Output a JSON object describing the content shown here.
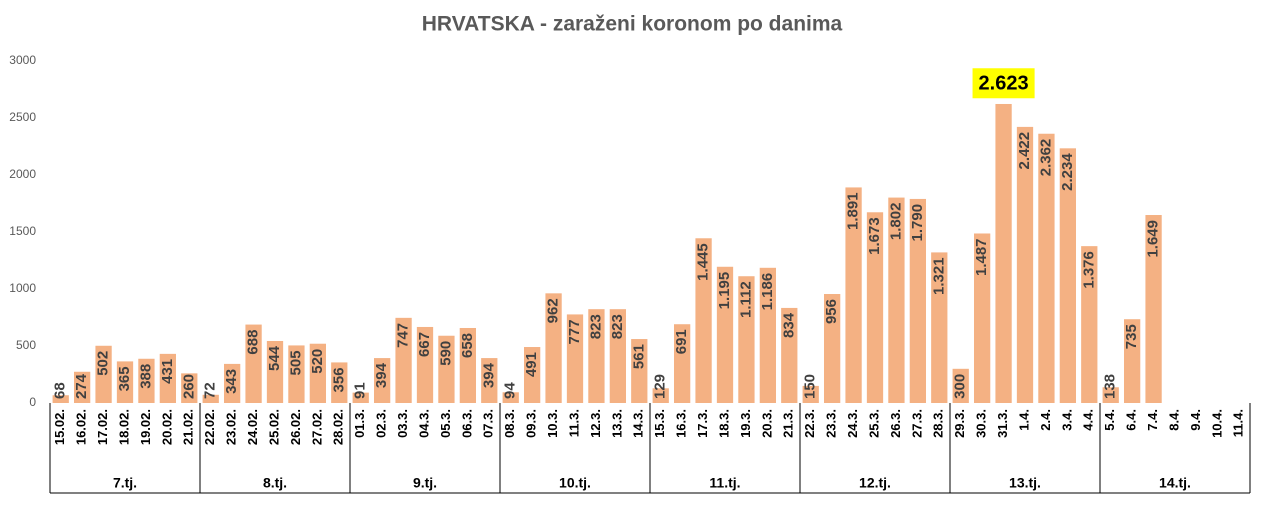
{
  "chart_data": {
    "type": "bar",
    "title": "HRVATSKA - zaraženi koronom po danima",
    "categories": [
      "15.02.",
      "16.02.",
      "17.02.",
      "18.02.",
      "19.02.",
      "20.02.",
      "21.02.",
      "22.02.",
      "23.02.",
      "24.02.",
      "25.02.",
      "26.02.",
      "27.02.",
      "28.02.",
      "01.3.",
      "02.3.",
      "03.3.",
      "04.3.",
      "05.3.",
      "06.3.",
      "07.3.",
      "08.3.",
      "09.3.",
      "10.3.",
      "11.3.",
      "12.3.",
      "13.3.",
      "14.3.",
      "15.3.",
      "16.3.",
      "17.3.",
      "18.3.",
      "19.3.",
      "20.3.",
      "21.3.",
      "22.3.",
      "23.3.",
      "24.3.",
      "25.3.",
      "26.3.",
      "27.3.",
      "28.3.",
      "29.3.",
      "30.3.",
      "31.3.",
      "1.4.",
      "2.4.",
      "3.4.",
      "4.4.",
      "5.4.",
      "6.4.",
      "7.4.",
      "8.4.",
      "9.4.",
      "10.4.",
      "11.4."
    ],
    "values": [
      68,
      274,
      502,
      365,
      388,
      431,
      260,
      72,
      343,
      688,
      544,
      505,
      520,
      356,
      91,
      394,
      747,
      667,
      590,
      658,
      394,
      94,
      491,
      962,
      777,
      823,
      823,
      561,
      129,
      691,
      1445,
      1195,
      1112,
      1186,
      834,
      150,
      956,
      1891,
      1673,
      1802,
      1790,
      1321,
      300,
      1487,
      2623,
      2422,
      2362,
      2234,
      1376,
      138,
      735,
      1649,
      null,
      null,
      null,
      null
    ],
    "value_labels": [
      "68",
      "274",
      "502",
      "365",
      "388",
      "431",
      "260",
      "72",
      "343",
      "688",
      "544",
      "505",
      "520",
      "356",
      "91",
      "394",
      "747",
      "667",
      "590",
      "658",
      "394",
      "94",
      "491",
      "962",
      "777",
      "823",
      "823",
      "561",
      "129",
      "691",
      "1.445",
      "1.195",
      "1.112",
      "1.186",
      "834",
      "150",
      "956",
      "1.891",
      "1.673",
      "1.802",
      "1.790",
      "1.321",
      "300",
      "1.487",
      "2.623",
      "2.422",
      "2.362",
      "2.234",
      "1.376",
      "138",
      "735",
      "1.649",
      null,
      null,
      null,
      null
    ],
    "groups": [
      "7.tj.",
      "8.tj.",
      "9.tj.",
      "10.tj.",
      "11.tj.",
      "12.tj.",
      "13.tj.",
      "14.tj."
    ],
    "highlight": "31.3.",
    "highlight_color": "#ffff00",
    "color": "#f4b183",
    "ylim": [
      0,
      3000
    ],
    "yticks": [
      0,
      500,
      1000,
      1500,
      2000,
      2500,
      3000
    ],
    "grid": false
  }
}
